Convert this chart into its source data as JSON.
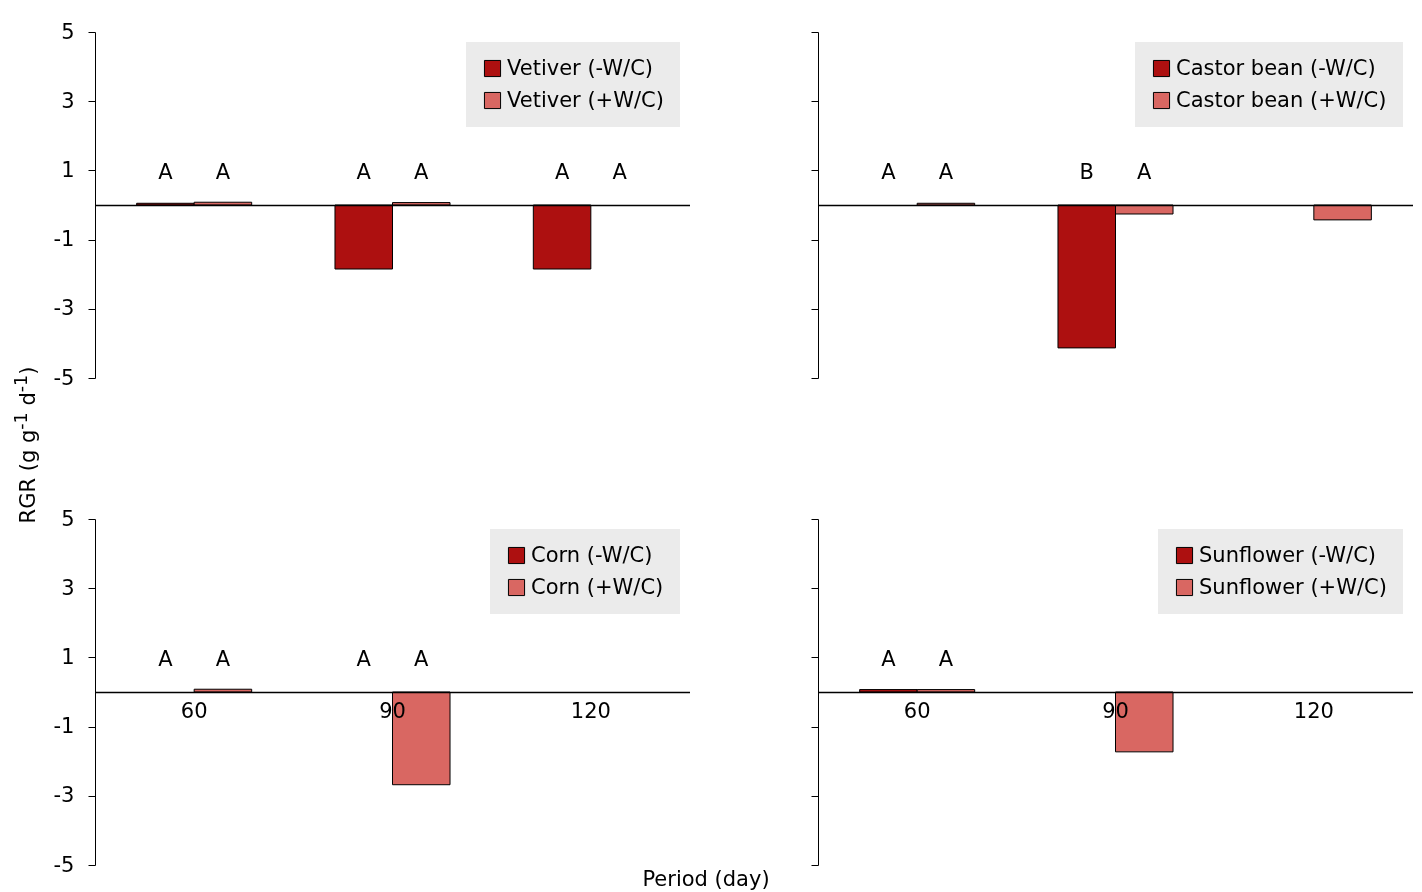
{
  "chart_data": [
    {
      "type": "bar",
      "ylabel": "RGR (g g$^{-1}$ d$^{-1}$)",
      "categories": [
        "60",
        "90",
        "120"
      ],
      "ylim": [
        -5,
        5
      ],
      "yticks": [
        5,
        3,
        1,
        -1,
        -3,
        -5
      ],
      "legend": "top right",
      "tick_labels": "y",
      "series": [
        {
          "name": "Vetiver (-W/C)",
          "color": "#ad1010",
          "values": [
            0.05,
            -1.85,
            -1.85
          ],
          "value_labels": [
            "A",
            "A",
            "A"
          ]
        },
        {
          "name": "Vetiver (+W/C)",
          "color": "#d96762",
          "values": [
            0.08,
            0.07,
            null
          ],
          "value_labels": [
            "A",
            "A",
            "A"
          ]
        }
      ]
    },
    {
      "type": "bar",
      "categories": [
        "60",
        "90",
        "120"
      ],
      "ylim": [
        -5,
        5
      ],
      "yticks": [
        {
          "value": 5,
          "label": null
        },
        {
          "value": 3,
          "label": null
        },
        {
          "value": 1,
          "label": null
        },
        {
          "value": -1,
          "label": null
        },
        {
          "value": -3,
          "label": null
        },
        {
          "value": -5,
          "label": null
        }
      ],
      "legend": "top right",
      "tick_labels": false,
      "series": [
        {
          "name": "Castor bean (-W/C)",
          "color": "#ad1010",
          "values": [
            null,
            -4.13,
            null
          ],
          "value_labels": [
            "A",
            "B",
            null
          ]
        },
        {
          "name": "Castor bean (+W/C)",
          "color": "#d96762",
          "values": [
            0.05,
            -0.26,
            -0.43
          ],
          "value_labels": [
            "A",
            "A",
            null
          ]
        }
      ]
    },
    {
      "type": "bar",
      "xlabel": "Period (day)",
      "categories": [
        "60",
        "90",
        "120"
      ],
      "ylim": [
        -5,
        5
      ],
      "yticks": [
        5,
        3,
        1,
        -1,
        -3,
        -5
      ],
      "legend": "top right",
      "series": [
        {
          "name": "Corn (-W/C)",
          "color": "#ad1010",
          "values": [
            null,
            null,
            null
          ],
          "value_labels": [
            "A",
            "A",
            null
          ]
        },
        {
          "name": "Corn (+W/C)",
          "color": "#d96762",
          "values": [
            0.08,
            -2.68,
            null
          ],
          "value_labels": [
            "A",
            "A",
            null
          ]
        }
      ]
    },
    {
      "type": "bar",
      "categories": [
        "60",
        "90",
        "120"
      ],
      "ylim": [
        -5,
        5
      ],
      "yticks": [
        {
          "value": 5,
          "label": null
        },
        {
          "value": 3,
          "label": null
        },
        {
          "value": 1,
          "label": null
        },
        {
          "value": -1,
          "label": null
        },
        {
          "value": -3,
          "label": null
        },
        {
          "value": -5,
          "label": null
        }
      ],
      "legend": "top right",
      "tick_labels": "x",
      "series": [
        {
          "name": "Sunflower (-W/C)",
          "color": "#ad1010",
          "values": [
            0.07,
            null,
            null
          ],
          "value_labels": [
            "A",
            null,
            null
          ]
        },
        {
          "name": "Sunflower (+W/C)",
          "color": "#d96762",
          "values": [
            0.07,
            -1.73,
            null
          ],
          "value_labels": [
            "A",
            null,
            null
          ]
        }
      ]
    }
  ]
}
